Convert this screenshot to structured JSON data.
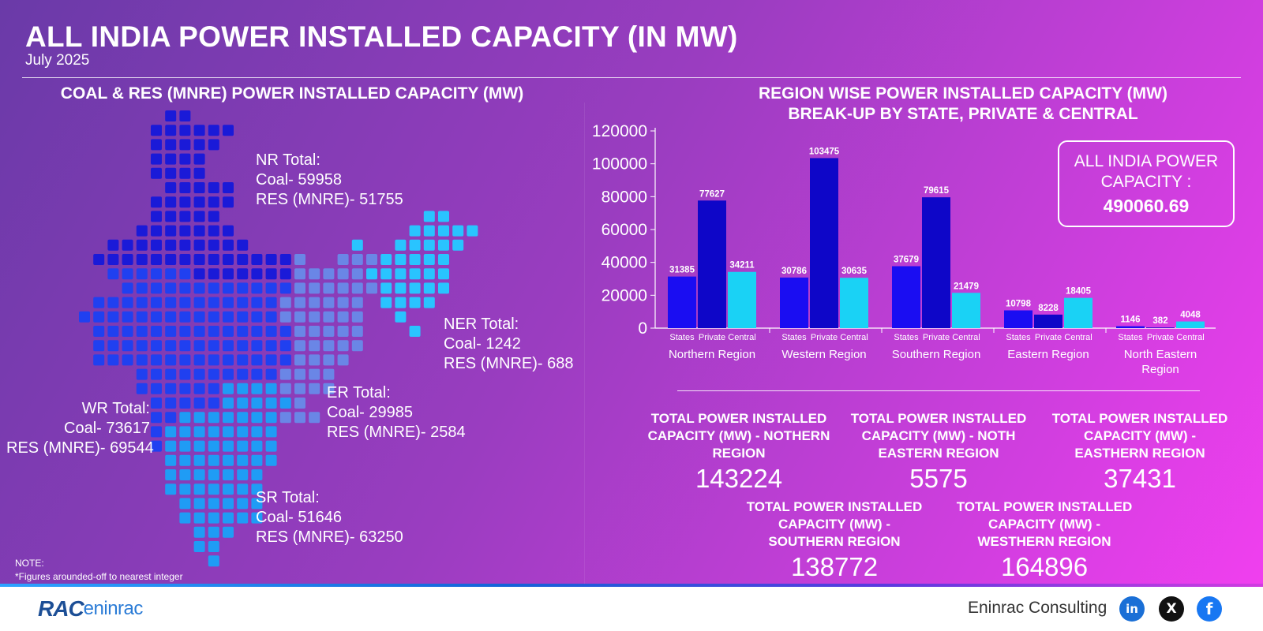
{
  "header": {
    "title": "ALL INDIA POWER INSTALLED CAPACITY (IN MW)",
    "subtitle": "July 2025"
  },
  "left_panel": {
    "title": "COAL & RES (MNRE) POWER INSTALLED CAPACITY (MW)",
    "regions": [
      {
        "name": "NR Total:",
        "coal": "Coal- 59958",
        "res": "RES (MNRE)- 51755",
        "color": "#1a1ad8"
      },
      {
        "name": "NER Total:",
        "coal": "Coal- 1242",
        "res": "RES (MNRE)- 688",
        "color": "#29c4ff"
      },
      {
        "name": "WR Total:",
        "coal": "Coal- 73617",
        "res": "RES (MNRE)- 69544",
        "color": "#2040f0"
      },
      {
        "name": "ER Total:",
        "coal": "Coal- 29985",
        "res": "RES (MNRE)- 2584",
        "color": "#6a86e6"
      },
      {
        "name": "SR Total:",
        "coal": "Coal- 51646",
        "res": "RES (MNRE)- 63250",
        "color": "#1f9cf5"
      }
    ]
  },
  "right_panel": {
    "title_line1": "REGION WISE POWER INSTALLED CAPACITY (MW)",
    "title_line2": "BREAK-UP BY STATE, PRIVATE & CENTRAL",
    "all_india_label": "ALL INDIA POWER CAPACITY :",
    "all_india_value": "490060.69"
  },
  "chart_data": {
    "type": "bar",
    "categories": [
      "Northern Region",
      "Western Region",
      "Southern Region",
      "Eastern Region",
      "North Eastern Region"
    ],
    "subcategories": [
      "States",
      "Private",
      "Central"
    ],
    "series": [
      {
        "name": "States",
        "values": [
          31385,
          30786,
          37679,
          10798,
          1146
        ],
        "color": "#1a0df2"
      },
      {
        "name": "Private",
        "values": [
          77627,
          103475,
          79615,
          8228,
          382
        ],
        "color": "#0e06c8"
      },
      {
        "name": "Central",
        "values": [
          34211,
          30635,
          21479,
          18405,
          4048
        ],
        "color": "#1ad2f5"
      }
    ],
    "yticks": [
      0,
      20000,
      40000,
      60000,
      80000,
      100000,
      120000
    ],
    "ylim": [
      0,
      120000
    ],
    "grid": false
  },
  "region_totals": [
    {
      "title": "TOTAL POWER INSTALLED CAPACITY (MW) - NOTHERN REGION",
      "value": "143224"
    },
    {
      "title": "TOTAL POWER INSTALLED CAPACITY (MW) - NOTH EASTERN REGION",
      "value": "5575"
    },
    {
      "title": "TOTAL POWER INSTALLED CAPACITY (MW) - EASTHERN REGION",
      "value": "37431"
    },
    {
      "title": "TOTAL POWER INSTALLED CAPACITY (MW) - SOUTHERN REGION",
      "value": "138772"
    },
    {
      "title": "TOTAL POWER INSTALLED CAPACITY (MW) - WESTHERN REGION",
      "value": "164896"
    }
  ],
  "note": {
    "label": "NOTE:",
    "text": "*Figures arounded-off to nearest integer"
  },
  "footer": {
    "logo_mark": "RAC",
    "logo_word": "eninrac",
    "company": "Eninrac Consulting",
    "linkedin": "in",
    "x": "X",
    "facebook": "f"
  }
}
